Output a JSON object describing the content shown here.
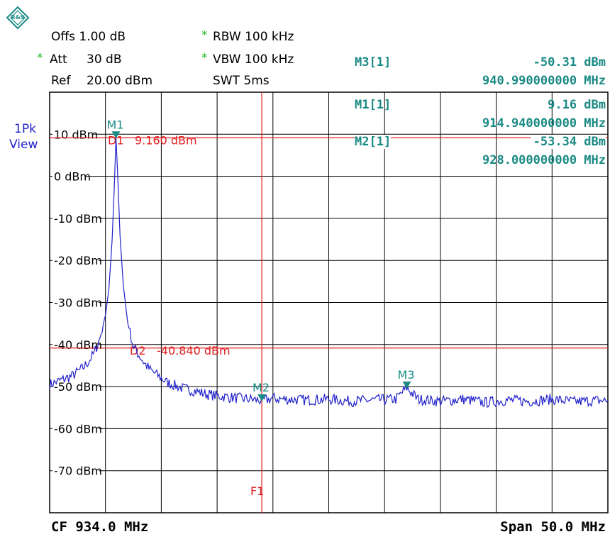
{
  "header": {
    "offs": "Offs 1.00 dB",
    "att": "Att",
    "att_val": "30 dB",
    "ref": "Ref",
    "ref_val": "20.00 dBm",
    "rbw": "RBW 100 kHz",
    "vbw": "VBW 100 kHz",
    "swt": "SWT 5ms",
    "star": "*"
  },
  "trace_label": {
    "line1": "1Pk",
    "line2": "View"
  },
  "markers_table": [
    {
      "label": "M3[1]",
      "level": "-50.31 dBm",
      "freq": "940.990000000 MHz"
    },
    {
      "label": "M1[1]",
      "level": "9.16 dBm",
      "freq": "914.940000000 MHz"
    },
    {
      "label": "M2[1]",
      "level": "-53.34 dBm",
      "freq": "928.000000000 MHz"
    }
  ],
  "footer": {
    "cf": "CF 934.0 MHz",
    "span": "Span 50.0 MHz"
  },
  "colors": {
    "trace": "#2020cc",
    "marker": "#1a8a84",
    "line": "#e02020",
    "grid": "#000000"
  },
  "chart_data": {
    "type": "line",
    "x_unit": "MHz",
    "y_unit": "dBm",
    "xlim": [
      909.0,
      959.0
    ],
    "ylim": [
      -80,
      20
    ],
    "y_ticks": [
      10,
      0,
      -10,
      -20,
      -30,
      -40,
      -50,
      -60,
      -70
    ],
    "y_tick_labels": [
      "10 dBm",
      "0 dBm",
      "-10 dBm",
      "-20 dBm",
      "-30 dBm",
      "-40 dBm",
      "-50 dBm",
      "-60 dBm",
      "-70 dBm"
    ],
    "x_divisions": 10,
    "grid": true,
    "series": [
      {
        "x": [
          909.0,
          909.5,
          910.0,
          910.5,
          911.0,
          911.5,
          912.0,
          912.5,
          913.0,
          913.5,
          914.0,
          914.3,
          914.6,
          914.8,
          914.94,
          915.1,
          915.3,
          915.6,
          916.0,
          916.5,
          917.0,
          917.5,
          918.0,
          918.5,
          919.0,
          919.5,
          920.0,
          921.0,
          922.0,
          923.0,
          924.0,
          925.0,
          926.0,
          927.0,
          928.0,
          929.0,
          930.0,
          932.0,
          934.0,
          936.0,
          938.0,
          940.0,
          940.99,
          942.0,
          944.0,
          946.0,
          948.0,
          950.0,
          952.0,
          954.0,
          956.0,
          958.0,
          959.0
        ],
        "y": [
          -49.5,
          -49.0,
          -48.5,
          -48.0,
          -47.5,
          -46.5,
          -45.5,
          -44.0,
          -42.0,
          -38.5,
          -33.0,
          -27.0,
          -15.0,
          -2.0,
          9.16,
          0.0,
          -14.0,
          -26.0,
          -35.0,
          -40.5,
          -42.5,
          -44.5,
          -46.0,
          -47.0,
          -48.0,
          -49.0,
          -49.5,
          -50.5,
          -51.0,
          -51.8,
          -52.2,
          -52.5,
          -52.8,
          -53.0,
          -53.34,
          -52.8,
          -53.0,
          -53.2,
          -53.0,
          -53.5,
          -53.2,
          -53.0,
          -50.31,
          -53.0,
          -53.5,
          -53.0,
          -53.8,
          -53.2,
          -53.5,
          -53.0,
          -53.6,
          -53.3,
          -53.4
        ]
      }
    ],
    "markers": [
      {
        "name": "M1",
        "x": 914.94,
        "y": 9.16
      },
      {
        "name": "M2",
        "x": 928.0,
        "y": -53.34
      },
      {
        "name": "M3",
        "x": 940.99,
        "y": -50.31
      }
    ],
    "display_lines": [
      {
        "name": "D1",
        "value_label": "9.160 dBm",
        "y": 9.16
      },
      {
        "name": "D2",
        "value_label": "-40.840 dBm",
        "y": -40.84
      }
    ],
    "frequency_line": {
      "name": "F1",
      "x": 928.0
    }
  }
}
